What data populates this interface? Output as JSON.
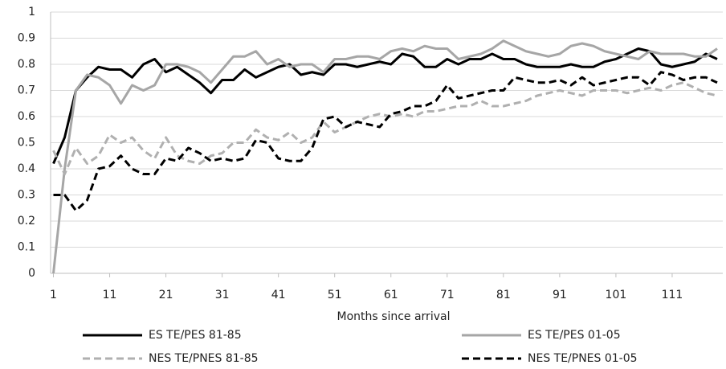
{
  "chart_data": {
    "type": "line",
    "x_label": "Months since arrival",
    "x": [
      1,
      3,
      5,
      7,
      9,
      11,
      13,
      15,
      17,
      19,
      21,
      23,
      25,
      27,
      29,
      31,
      33,
      35,
      37,
      39,
      41,
      43,
      45,
      47,
      49,
      51,
      53,
      55,
      57,
      59,
      61,
      63,
      65,
      67,
      69,
      71,
      73,
      75,
      77,
      79,
      81,
      83,
      85,
      87,
      89,
      91,
      93,
      95,
      97,
      99,
      101,
      103,
      105,
      107,
      109,
      111,
      113,
      115,
      117,
      119
    ],
    "xlim": [
      0.5,
      120
    ],
    "xticks": [
      1,
      11,
      21,
      31,
      41,
      51,
      61,
      71,
      81,
      91,
      101,
      111
    ],
    "ylim": [
      0,
      1
    ],
    "yticks": [
      0,
      0.1,
      0.2,
      0.3,
      0.4,
      0.5,
      0.6,
      0.7,
      0.8,
      0.9,
      1
    ],
    "grid": true,
    "legend": "bottom",
    "series": [
      {
        "name": "ES TE/PES 81-85",
        "color": "#000000",
        "dashed": false,
        "values": [
          0.42,
          0.52,
          0.7,
          0.75,
          0.79,
          0.78,
          0.78,
          0.75,
          0.8,
          0.82,
          0.77,
          0.79,
          0.76,
          0.73,
          0.69,
          0.74,
          0.74,
          0.78,
          0.75,
          0.77,
          0.79,
          0.8,
          0.76,
          0.77,
          0.76,
          0.8,
          0.8,
          0.79,
          0.8,
          0.81,
          0.8,
          0.84,
          0.83,
          0.79,
          0.79,
          0.82,
          0.8,
          0.82,
          0.82,
          0.84,
          0.82,
          0.82,
          0.8,
          0.79,
          0.79,
          0.79,
          0.8,
          0.79,
          0.79,
          0.81,
          0.82,
          0.84,
          0.86,
          0.85,
          0.8,
          0.79,
          0.8,
          0.81,
          0.84,
          0.82
        ]
      },
      {
        "name": "ES TE/PES 01-05",
        "color": "#a6a6a6",
        "dashed": false,
        "values": [
          0,
          0.4,
          0.7,
          0.76,
          0.75,
          0.72,
          0.65,
          0.72,
          0.7,
          0.72,
          0.8,
          0.8,
          0.79,
          0.77,
          0.73,
          0.78,
          0.83,
          0.83,
          0.85,
          0.8,
          0.82,
          0.79,
          0.8,
          0.8,
          0.77,
          0.82,
          0.82,
          0.83,
          0.83,
          0.82,
          0.85,
          0.86,
          0.85,
          0.87,
          0.86,
          0.86,
          0.82,
          0.83,
          0.84,
          0.86,
          0.89,
          0.87,
          0.85,
          0.84,
          0.83,
          0.84,
          0.87,
          0.88,
          0.87,
          0.85,
          0.84,
          0.83,
          0.82,
          0.85,
          0.84,
          0.84,
          0.84,
          0.83,
          0.83,
          0.86
        ]
      },
      {
        "name": "NES TE/PNES 81-85",
        "color": "#b0b0b0",
        "dashed": true,
        "values": [
          0.47,
          0.38,
          0.48,
          0.42,
          0.45,
          0.53,
          0.5,
          0.52,
          0.47,
          0.44,
          0.52,
          0.45,
          0.43,
          0.42,
          0.45,
          0.46,
          0.5,
          0.5,
          0.55,
          0.52,
          0.51,
          0.54,
          0.5,
          0.52,
          0.58,
          0.54,
          0.56,
          0.58,
          0.6,
          0.61,
          0.6,
          0.61,
          0.6,
          0.62,
          0.62,
          0.63,
          0.64,
          0.64,
          0.66,
          0.64,
          0.64,
          0.65,
          0.66,
          0.68,
          0.69,
          0.7,
          0.69,
          0.68,
          0.7,
          0.7,
          0.7,
          0.69,
          0.7,
          0.71,
          0.7,
          0.72,
          0.73,
          0.71,
          0.69,
          0.68
        ]
      },
      {
        "name": "NES TE/PNES 01-05",
        "color": "#000000",
        "dashed": true,
        "values": [
          0.3,
          0.3,
          0.24,
          0.28,
          0.4,
          0.41,
          0.45,
          0.4,
          0.38,
          0.38,
          0.44,
          0.43,
          0.48,
          0.46,
          0.43,
          0.44,
          0.43,
          0.44,
          0.51,
          0.5,
          0.44,
          0.43,
          0.43,
          0.48,
          0.59,
          0.6,
          0.56,
          0.58,
          0.57,
          0.56,
          0.61,
          0.62,
          0.64,
          0.64,
          0.66,
          0.72,
          0.67,
          0.68,
          0.69,
          0.7,
          0.7,
          0.75,
          0.74,
          0.73,
          0.73,
          0.74,
          0.72,
          0.75,
          0.72,
          0.73,
          0.74,
          0.75,
          0.75,
          0.72,
          0.77,
          0.76,
          0.74,
          0.75,
          0.75,
          0.73
        ]
      }
    ]
  }
}
